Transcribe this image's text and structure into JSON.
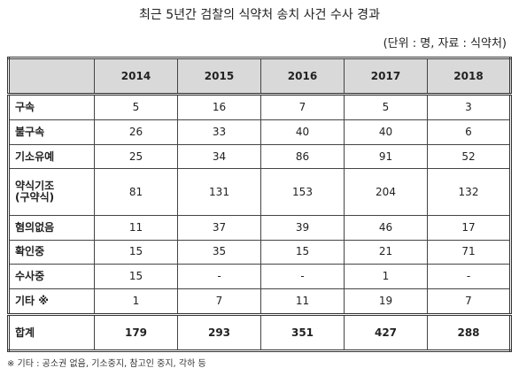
{
  "header": {
    "title": "최근 5년간 검찰의 식약처 송치 사건 수사 경과",
    "unit": "(단위 : 명, 자료 : 식약처)"
  },
  "table": {
    "columns": [
      "",
      "2014",
      "2015",
      "2016",
      "2017",
      "2018"
    ],
    "rows": [
      [
        "구속",
        5,
        16,
        7,
        5,
        3
      ],
      [
        "불구속",
        26,
        33,
        40,
        40,
        6
      ],
      [
        "기소유예",
        25,
        34,
        86,
        91,
        52
      ],
      [
        "약식기조\n(구약식)",
        81,
        131,
        153,
        204,
        132
      ],
      [
        "혐의없음",
        11,
        37,
        39,
        46,
        17
      ],
      [
        "확인중",
        15,
        35,
        15,
        21,
        71
      ],
      [
        "수사중",
        15,
        "-",
        "-",
        1,
        "-"
      ],
      [
        "기타 ※",
        1,
        7,
        11,
        19,
        7
      ],
      [
        "합계",
        179,
        293,
        351,
        427,
        288
      ]
    ]
  },
  "footnote": "※ 기타 : 공소권 없음, 기소중지, 참고인 중지, 각하 등"
}
